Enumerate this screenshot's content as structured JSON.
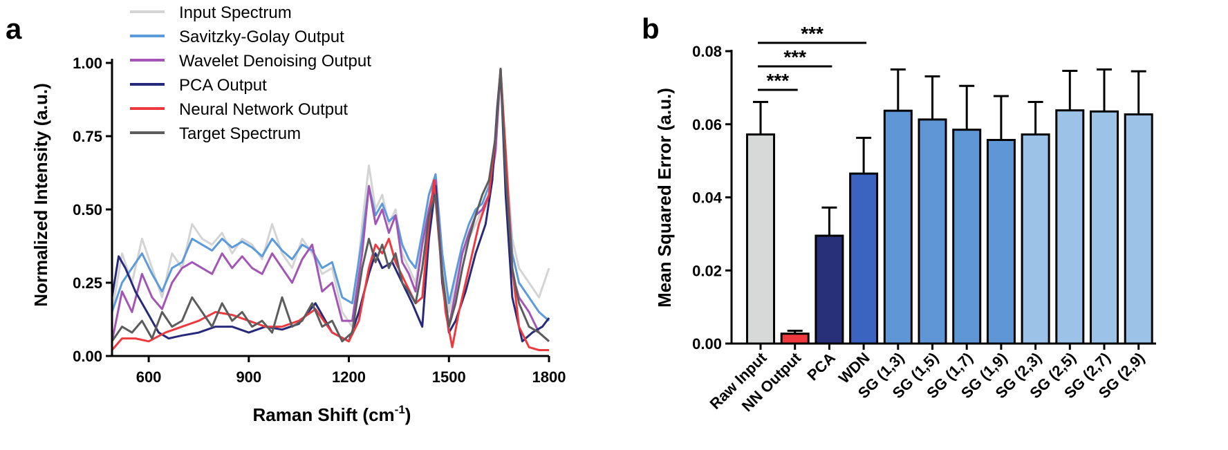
{
  "chart_data": [
    {
      "panel": "a",
      "type": "line",
      "xlabel": "Raman Shift (cm",
      "xlabel_sup": "-1",
      "xlabel_end": ")",
      "ylabel": "Normalized Intensity (a.u.)",
      "xlim": [
        490,
        1800
      ],
      "ylim": [
        0,
        1.0
      ],
      "x_ticks": [
        600,
        900,
        1200,
        1500,
        1800
      ],
      "y_ticks": [
        0.0,
        0.25,
        0.5,
        0.75,
        1.0
      ],
      "x_tick_labels": [
        "600",
        "900",
        "1200",
        "1500",
        "1800"
      ],
      "y_tick_labels": [
        "0.00",
        "0.25",
        "0.50",
        "0.75",
        "1.00"
      ],
      "legend_position": "top-left",
      "series": [
        {
          "name": "Input Spectrum",
          "color": "#d4d4d4",
          "x": [
            490,
            520,
            550,
            580,
            610,
            640,
            670,
            700,
            730,
            760,
            790,
            820,
            850,
            880,
            910,
            940,
            970,
            1000,
            1030,
            1060,
            1090,
            1120,
            1150,
            1180,
            1210,
            1240,
            1260,
            1280,
            1300,
            1320,
            1340,
            1360,
            1380,
            1400,
            1420,
            1440,
            1460,
            1480,
            1500,
            1520,
            1540,
            1560,
            1580,
            1600,
            1620,
            1640,
            1655,
            1670,
            1690,
            1710,
            1740,
            1770,
            1800
          ],
          "y": [
            0.15,
            0.35,
            0.25,
            0.4,
            0.3,
            0.2,
            0.35,
            0.3,
            0.45,
            0.4,
            0.38,
            0.42,
            0.35,
            0.4,
            0.38,
            0.33,
            0.45,
            0.35,
            0.3,
            0.4,
            0.35,
            0.28,
            0.3,
            0.15,
            0.1,
            0.45,
            0.65,
            0.5,
            0.55,
            0.45,
            0.5,
            0.35,
            0.3,
            0.25,
            0.4,
            0.55,
            0.6,
            0.3,
            0.15,
            0.25,
            0.35,
            0.4,
            0.45,
            0.5,
            0.55,
            0.75,
            0.95,
            0.7,
            0.4,
            0.3,
            0.25,
            0.2,
            0.3
          ]
        },
        {
          "name": "Savitzky-Golay Output",
          "color": "#5b9bdc",
          "x": [
            490,
            520,
            550,
            580,
            610,
            640,
            670,
            700,
            730,
            760,
            790,
            820,
            850,
            880,
            910,
            940,
            970,
            1000,
            1030,
            1060,
            1090,
            1120,
            1150,
            1180,
            1210,
            1240,
            1260,
            1280,
            1300,
            1320,
            1340,
            1360,
            1380,
            1400,
            1420,
            1440,
            1460,
            1480,
            1500,
            1520,
            1540,
            1560,
            1580,
            1600,
            1620,
            1640,
            1655,
            1670,
            1690,
            1710,
            1740,
            1770,
            1800
          ],
          "y": [
            0.15,
            0.25,
            0.3,
            0.35,
            0.28,
            0.22,
            0.3,
            0.32,
            0.4,
            0.38,
            0.36,
            0.4,
            0.37,
            0.39,
            0.37,
            0.34,
            0.4,
            0.36,
            0.33,
            0.38,
            0.36,
            0.3,
            0.32,
            0.2,
            0.18,
            0.4,
            0.58,
            0.48,
            0.52,
            0.46,
            0.48,
            0.38,
            0.33,
            0.3,
            0.42,
            0.55,
            0.62,
            0.35,
            0.18,
            0.28,
            0.38,
            0.45,
            0.5,
            0.52,
            0.58,
            0.72,
            0.98,
            0.68,
            0.35,
            0.25,
            0.2,
            0.15,
            0.12
          ]
        },
        {
          "name": "Wavelet Denoising Output",
          "color": "#a355b5",
          "x": [
            490,
            520,
            550,
            580,
            610,
            640,
            670,
            700,
            730,
            760,
            790,
            820,
            850,
            880,
            910,
            940,
            970,
            1000,
            1030,
            1060,
            1090,
            1120,
            1150,
            1180,
            1210,
            1240,
            1260,
            1280,
            1300,
            1320,
            1340,
            1360,
            1380,
            1400,
            1420,
            1440,
            1460,
            1480,
            1500,
            1520,
            1540,
            1560,
            1580,
            1600,
            1620,
            1640,
            1655,
            1670,
            1690,
            1710,
            1740,
            1770,
            1800
          ],
          "y": [
            0.05,
            0.22,
            0.15,
            0.28,
            0.2,
            0.16,
            0.25,
            0.3,
            0.32,
            0.3,
            0.28,
            0.35,
            0.3,
            0.34,
            0.3,
            0.28,
            0.35,
            0.3,
            0.25,
            0.33,
            0.38,
            0.22,
            0.25,
            0.12,
            0.12,
            0.35,
            0.58,
            0.45,
            0.5,
            0.42,
            0.48,
            0.32,
            0.28,
            0.22,
            0.38,
            0.5,
            0.6,
            0.28,
            0.1,
            0.22,
            0.35,
            0.42,
            0.48,
            0.5,
            0.55,
            0.7,
            0.98,
            0.6,
            0.28,
            0.2,
            0.15,
            0.08,
            0.05
          ]
        },
        {
          "name": "PCA Output",
          "color": "#27297a",
          "x": [
            490,
            510,
            530,
            560,
            600,
            630,
            660,
            700,
            750,
            800,
            850,
            900,
            950,
            1000,
            1050,
            1100,
            1150,
            1200,
            1230,
            1260,
            1280,
            1300,
            1330,
            1360,
            1390,
            1420,
            1440,
            1460,
            1480,
            1500,
            1520,
            1550,
            1580,
            1610,
            1630,
            1645,
            1655,
            1670,
            1690,
            1720,
            1750,
            1780,
            1800
          ],
          "y": [
            0.2,
            0.34,
            0.3,
            0.22,
            0.14,
            0.08,
            0.06,
            0.07,
            0.08,
            0.1,
            0.1,
            0.08,
            0.1,
            0.09,
            0.11,
            0.18,
            0.08,
            0.05,
            0.15,
            0.28,
            0.35,
            0.3,
            0.32,
            0.25,
            0.18,
            0.1,
            0.4,
            0.58,
            0.25,
            0.08,
            0.12,
            0.22,
            0.35,
            0.45,
            0.6,
            0.85,
            0.98,
            0.55,
            0.2,
            0.05,
            0.08,
            0.1,
            0.13
          ]
        },
        {
          "name": "Neural Network Output",
          "color": "#ee3a3f",
          "x": [
            490,
            520,
            560,
            600,
            650,
            700,
            750,
            800,
            850,
            900,
            950,
            1000,
            1050,
            1100,
            1150,
            1200,
            1230,
            1260,
            1280,
            1300,
            1320,
            1340,
            1370,
            1400,
            1420,
            1440,
            1455,
            1470,
            1490,
            1510,
            1530,
            1560,
            1590,
            1620,
            1640,
            1655,
            1670,
            1690,
            1710,
            1740,
            1770,
            1800
          ],
          "y": [
            0.02,
            0.06,
            0.06,
            0.05,
            0.08,
            0.1,
            0.12,
            0.15,
            0.14,
            0.12,
            0.1,
            0.1,
            0.12,
            0.16,
            0.08,
            0.05,
            0.12,
            0.3,
            0.38,
            0.35,
            0.4,
            0.32,
            0.25,
            0.18,
            0.2,
            0.45,
            0.6,
            0.4,
            0.15,
            0.03,
            0.15,
            0.3,
            0.45,
            0.55,
            0.75,
            0.98,
            0.7,
            0.3,
            0.1,
            0.03,
            0.02,
            0.02
          ]
        },
        {
          "name": "Target Spectrum",
          "color": "#5c5c5c",
          "x": [
            490,
            520,
            550,
            580,
            610,
            640,
            670,
            700,
            730,
            760,
            790,
            820,
            850,
            880,
            910,
            940,
            970,
            1000,
            1030,
            1060,
            1090,
            1120,
            1150,
            1180,
            1210,
            1240,
            1260,
            1280,
            1300,
            1320,
            1340,
            1360,
            1380,
            1400,
            1420,
            1440,
            1460,
            1480,
            1500,
            1520,
            1540,
            1560,
            1580,
            1600,
            1620,
            1640,
            1655,
            1670,
            1690,
            1710,
            1740,
            1770,
            1800
          ],
          "y": [
            0.05,
            0.1,
            0.08,
            0.12,
            0.06,
            0.15,
            0.1,
            0.12,
            0.2,
            0.15,
            0.1,
            0.18,
            0.12,
            0.15,
            0.1,
            0.12,
            0.08,
            0.2,
            0.1,
            0.12,
            0.18,
            0.1,
            0.12,
            0.05,
            0.08,
            0.3,
            0.4,
            0.32,
            0.38,
            0.3,
            0.35,
            0.25,
            0.22,
            0.18,
            0.3,
            0.48,
            0.55,
            0.28,
            0.1,
            0.18,
            0.3,
            0.4,
            0.48,
            0.55,
            0.6,
            0.75,
            0.98,
            0.62,
            0.3,
            0.18,
            0.1,
            0.08,
            0.05
          ]
        }
      ]
    },
    {
      "panel": "b",
      "type": "bar",
      "ylabel": "Mean Squared Error (a.u.)",
      "ylim": [
        0,
        0.08
      ],
      "y_ticks": [
        0.0,
        0.02,
        0.04,
        0.06,
        0.08
      ],
      "y_tick_labels": [
        "0.00",
        "0.02",
        "0.04",
        "0.06",
        "0.08"
      ],
      "categories": [
        "Raw Input",
        "NN Output",
        "PCA",
        "WDN",
        "SG (1,3)",
        "SG (1,5)",
        "SG (1,7)",
        "SG (1,9)",
        "SG (2,3)",
        "SG (2,5)",
        "SG (2,7)",
        "SG (2,9)"
      ],
      "values": [
        0.0572,
        0.0027,
        0.0295,
        0.0465,
        0.0637,
        0.0613,
        0.0585,
        0.0557,
        0.0572,
        0.0638,
        0.0635,
        0.0627
      ],
      "errors": [
        0.0089,
        0.0008,
        0.0077,
        0.0098,
        0.0113,
        0.0118,
        0.012,
        0.012,
        0.0089,
        0.0108,
        0.0115,
        0.0118
      ],
      "colors": [
        "#d7d9d8",
        "#ee3a3f",
        "#28307a",
        "#3b64c0",
        "#5f96d6",
        "#5f96d6",
        "#5f96d6",
        "#5f96d6",
        "#9cc2e8",
        "#9cc2e8",
        "#9cc2e8",
        "#9cc2e8"
      ],
      "significance": [
        {
          "from": 0,
          "to": 1,
          "label": "***"
        },
        {
          "from": 0,
          "to": 2,
          "label": "***"
        },
        {
          "from": 0,
          "to": 3,
          "label": "***"
        }
      ]
    }
  ],
  "labels": {
    "panel_a": "a",
    "panel_b": "b"
  }
}
